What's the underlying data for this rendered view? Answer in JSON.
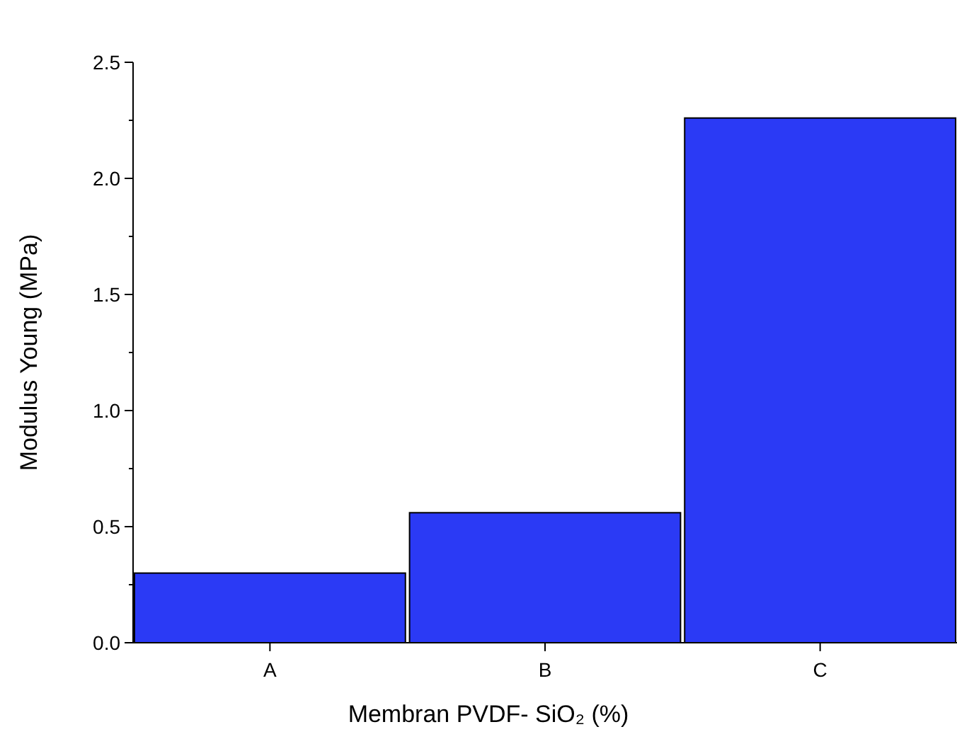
{
  "chart_data": {
    "type": "bar",
    "xlabel": "Membran PVDF- SiO₂ (%)",
    "ylabel": "Modulus Young (MPa)",
    "categories": [
      "A",
      "B",
      "C"
    ],
    "values": [
      0.3,
      0.56,
      2.26
    ],
    "color": "#2b3af5",
    "ylim": [
      0,
      2.5
    ],
    "yticks": [
      {
        "value": 0,
        "label": "0.0"
      },
      {
        "value": 0.25,
        "label": null
      },
      {
        "value": 0.5,
        "label": "0.5"
      },
      {
        "value": 0.75,
        "label": null
      },
      {
        "value": 1,
        "label": "1.0"
      },
      {
        "value": 1.25,
        "label": null
      },
      1.5,
      {
        "value": 1.75,
        "label": null
      },
      {
        "value": 2,
        "label": "2.0"
      },
      {
        "value": 2.25,
        "label": null
      },
      2.5
    ],
    "grid": false
  }
}
